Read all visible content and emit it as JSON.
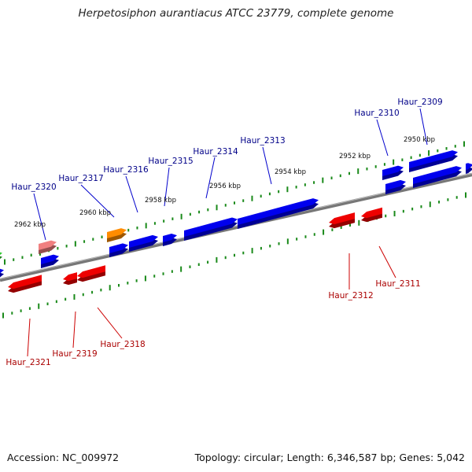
{
  "title": "Herpetosiphon aurantiacus ATCC 23779, complete genome",
  "footer": {
    "accession": "Accession: NC_009972",
    "topology": "Topology: circular; Length: 6,346,587 bp; Genes: 5,042"
  },
  "colors": {
    "forward_gene": "#0000ee",
    "reverse_gene": "#ee0000",
    "orange_gene": "#ff8c00",
    "pink_gene": "#f08080",
    "green_gene": "#33cc33",
    "backbone": "#777777",
    "tick": "#1a8a1a",
    "forward_label": "#000088",
    "reverse_label": "#aa0000"
  },
  "kbp_labels": [
    "2962 kbp",
    "2960 kbp",
    "2958 kbp",
    "2956 kbp",
    "2954 kbp",
    "2952 kbp",
    "2950 kbp"
  ],
  "forward_genes": [
    "Haur_2320",
    "Haur_2317",
    "Haur_2316",
    "Haur_2315",
    "Haur_2314",
    "Haur_2313",
    "Haur_2310",
    "Haur_2309"
  ],
  "reverse_genes": [
    "Haur_2321",
    "Haur_2319",
    "Haur_2318",
    "Haur_2312",
    "Haur_2311"
  ]
}
